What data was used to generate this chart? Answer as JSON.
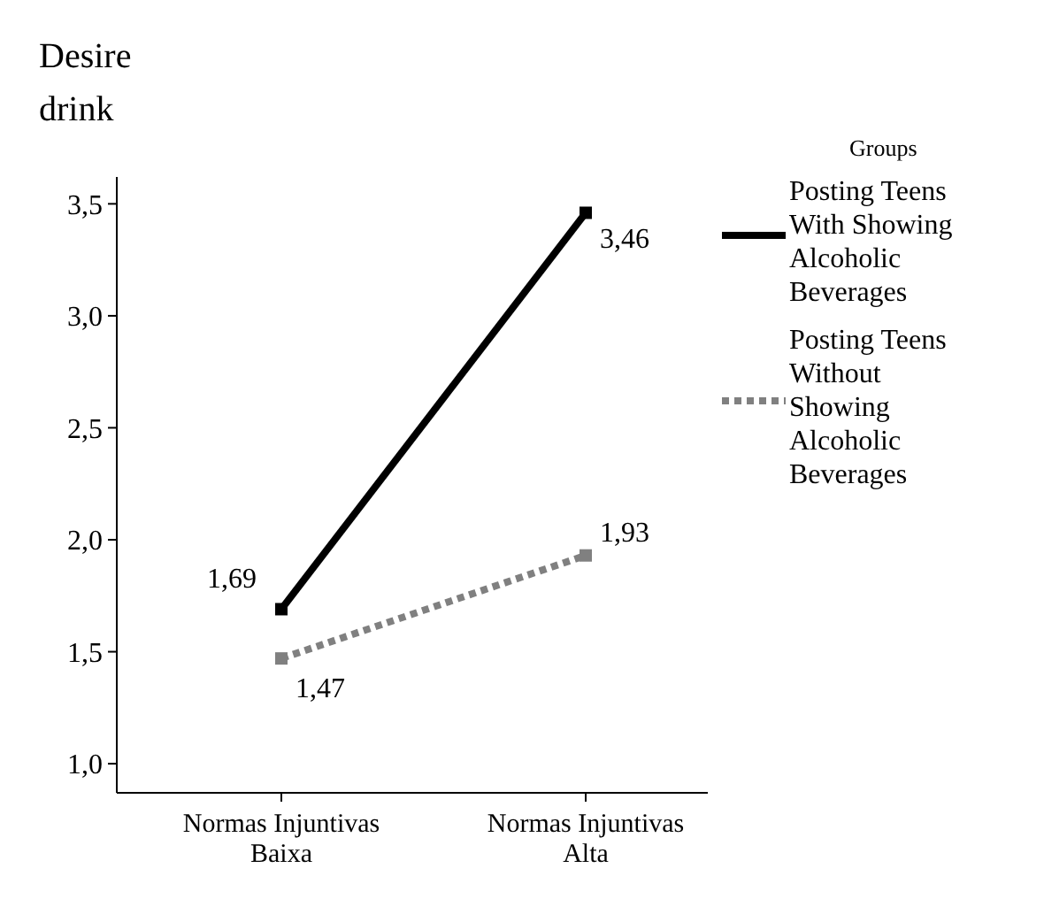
{
  "chart_data": {
    "type": "line",
    "ylabel": "Desire drink",
    "legend_title": "Groups",
    "categories": [
      "Normas Injuntivas Baixa",
      "Normas Injuntivas Alta"
    ],
    "series": [
      {
        "name": "Posting Teens With Showing Alcoholic Beverages",
        "color": "#000000",
        "line_style": "solid",
        "values": [
          1.69,
          3.46
        ],
        "value_labels": [
          "1,69",
          "3,46"
        ]
      },
      {
        "name": "Posting Teens Without Showing Alcoholic Beverages",
        "color": "#808080",
        "line_style": "dotted",
        "values": [
          1.47,
          1.93
        ],
        "value_labels": [
          "1,47",
          "1,93"
        ]
      }
    ],
    "ylim": [
      0.87,
      3.62
    ],
    "yticks": [
      {
        "value": 1,
        "label": "1,0"
      },
      {
        "value": 1.5,
        "label": "1,5"
      },
      {
        "value": 2,
        "label": "2,0"
      },
      {
        "value": 2.5,
        "label": "2,5"
      },
      {
        "value": 3,
        "label": "3,0"
      },
      {
        "value": 3.5,
        "label": "3,5"
      }
    ],
    "marker": "square",
    "legend": "right",
    "grid": false
  }
}
